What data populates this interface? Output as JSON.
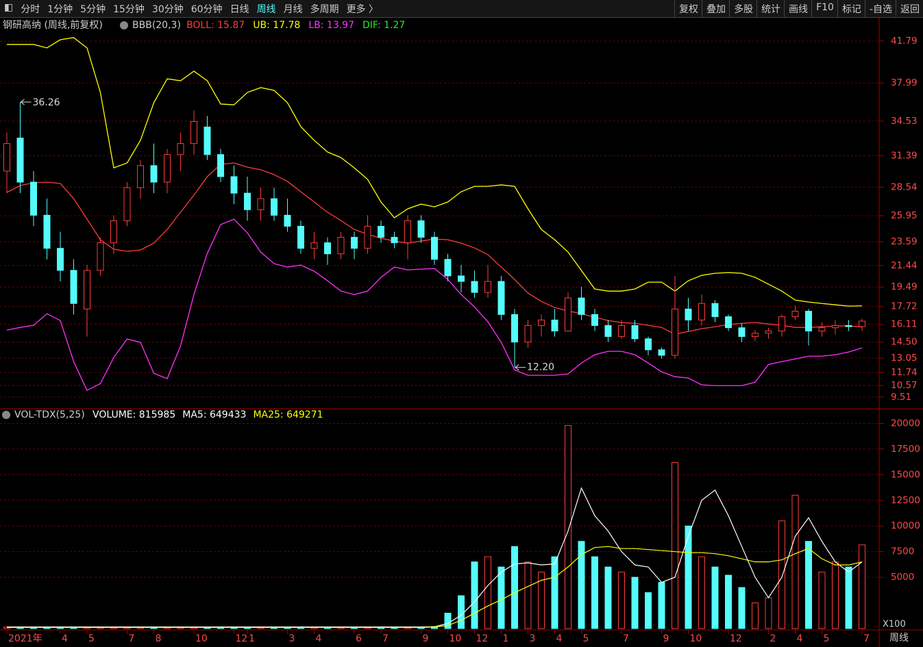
{
  "toolbar": {
    "left": [
      "分时",
      "1分钟",
      "5分钟",
      "15分钟",
      "30分钟",
      "60分钟",
      "日线",
      "周线",
      "月线",
      "多周期",
      "更多 〉"
    ],
    "active": 7,
    "right": [
      "复权",
      "叠加",
      "多股",
      "统计",
      "画线",
      "F10",
      "标记",
      "-自选",
      "返回"
    ]
  },
  "footer_period": "周线",
  "chart_data": [
    {
      "type": "candlestick",
      "title": "钢研高纳 (周线,前复权)",
      "indicator": "BBB(20,3)",
      "extra_legend": {
        "text": "DIF: 1.27",
        "color": "#22ee22"
      },
      "up_color": "#ff3c3c",
      "down_color": "#54fcfc",
      "grid": true,
      "categories": [
        "2021年",
        null,
        null,
        null,
        "4",
        null,
        "5",
        null,
        null,
        "7",
        null,
        "8",
        null,
        null,
        "10",
        null,
        null,
        "12",
        "1",
        null,
        null,
        "3",
        null,
        "4",
        null,
        null,
        "6",
        null,
        "7",
        null,
        null,
        "9",
        null,
        "10",
        null,
        "12",
        null,
        "1",
        null,
        "3",
        null,
        "4",
        null,
        "5",
        null,
        null,
        "7",
        null,
        null,
        "9",
        null,
        "10",
        null,
        null,
        "12",
        null,
        null,
        "2",
        null,
        "4",
        null,
        "5",
        null,
        null,
        "7"
      ],
      "ohlc": [
        [
          30,
          33.5,
          28,
          32.5
        ],
        [
          33,
          36.26,
          28,
          29
        ],
        [
          29,
          30,
          25,
          26
        ],
        [
          26,
          27.5,
          22,
          23
        ],
        [
          23,
          24.5,
          20,
          21
        ],
        [
          21,
          22,
          17,
          18
        ],
        [
          17.5,
          21.5,
          15,
          21
        ],
        [
          21,
          24,
          20.5,
          23.5
        ],
        [
          23.5,
          26,
          22.5,
          25.5
        ],
        [
          25.5,
          29,
          25,
          28.5
        ],
        [
          28.5,
          31,
          27.5,
          30.5
        ],
        [
          30.5,
          32.5,
          28,
          29
        ],
        [
          29,
          32,
          28,
          31.5
        ],
        [
          31.5,
          33.5,
          30,
          32.5
        ],
        [
          32.5,
          35.5,
          31.5,
          34.5
        ],
        [
          34,
          35,
          31,
          31.5
        ],
        [
          31.5,
          32,
          29,
          29.5
        ],
        [
          29.5,
          30.5,
          27,
          28
        ],
        [
          28,
          29.5,
          25.5,
          26.5
        ],
        [
          26.5,
          28.5,
          25.5,
          27.5
        ],
        [
          27.5,
          28.5,
          25.5,
          26
        ],
        [
          26,
          27.5,
          24.5,
          25
        ],
        [
          25,
          25.5,
          22.5,
          23
        ],
        [
          23,
          24.5,
          22,
          23.5
        ],
        [
          23.5,
          24,
          21.5,
          22.5
        ],
        [
          22.5,
          24.5,
          22,
          24
        ],
        [
          24,
          24.5,
          22,
          23
        ],
        [
          23,
          26,
          22.5,
          25
        ],
        [
          25,
          25.5,
          23.5,
          24
        ],
        [
          24,
          24.5,
          23,
          23.5
        ],
        [
          23.5,
          26,
          22,
          25.5
        ],
        [
          25.5,
          26,
          23.5,
          24
        ],
        [
          24,
          24.5,
          21.5,
          22
        ],
        [
          22,
          22.5,
          20,
          20.5
        ],
        [
          20.5,
          21.5,
          19,
          20
        ],
        [
          20,
          21,
          18.5,
          19
        ],
        [
          19,
          21.5,
          18.5,
          20
        ],
        [
          20,
          20.5,
          16.5,
          17
        ],
        [
          17,
          17.5,
          12.2,
          14.5
        ],
        [
          14.5,
          16.5,
          14,
          16
        ],
        [
          16,
          17,
          15,
          16.5
        ],
        [
          16.5,
          17.5,
          15,
          15.5
        ],
        [
          15.5,
          19,
          15.5,
          18.5
        ],
        [
          18.5,
          19.5,
          16.5,
          17
        ],
        [
          17,
          17.5,
          15.5,
          16
        ],
        [
          16,
          16.5,
          14.5,
          15
        ],
        [
          15,
          16.5,
          14.8,
          16
        ],
        [
          16,
          16.5,
          14.5,
          14.8
        ],
        [
          14.8,
          15,
          13.3,
          13.8
        ],
        [
          13.8,
          14,
          13,
          13.3
        ],
        [
          13.3,
          20.5,
          13,
          17.5
        ],
        [
          17.5,
          18.5,
          15.5,
          16.5
        ],
        [
          16.5,
          18.8,
          16,
          18
        ],
        [
          18,
          18.3,
          16.3,
          16.8
        ],
        [
          16.8,
          17,
          15.5,
          15.8
        ],
        [
          15.8,
          16.2,
          14.5,
          15
        ],
        [
          15,
          15.6,
          14.6,
          15.3
        ],
        [
          15.3,
          15.8,
          14.8,
          15.5
        ],
        [
          15.5,
          17,
          15,
          16.8
        ],
        [
          16.8,
          17.8,
          16.5,
          17.3
        ],
        [
          17.3,
          17.5,
          14.2,
          15.5
        ],
        [
          15.5,
          16.3,
          15,
          15.8
        ],
        [
          15.8,
          16.5,
          15.2,
          16
        ],
        [
          16,
          16.5,
          15.5,
          15.9
        ],
        [
          15.9,
          16.6,
          15.5,
          16.4
        ]
      ],
      "series": [
        {
          "name": "BOLL: 15.87",
          "color": "#ff3c3c",
          "values": [
            28.07,
            28.69,
            28.94,
            29.0,
            28.88,
            27.51,
            25.65,
            23.78,
            22.91,
            22.73,
            22.85,
            23.47,
            24.71,
            26.27,
            27.82,
            29.5,
            30.61,
            30.74,
            30.36,
            30.12,
            29.68,
            29.06,
            28.13,
            27.2,
            26.27,
            25.52,
            24.71,
            24.28,
            23.91,
            23.66,
            23.47,
            23.66,
            23.84,
            23.78,
            23.47,
            23.04,
            22.42,
            21.3,
            20.18,
            18.94,
            18.19,
            17.63,
            17.32,
            17.07,
            16.76,
            16.45,
            16.27,
            16.2,
            16.02,
            15.83,
            15.21,
            15.46,
            15.71,
            15.89,
            16.08,
            16.2,
            16.27,
            16.14,
            16.02,
            15.83,
            15.83,
            15.89,
            15.96,
            15.96,
            15.87
          ]
        },
        {
          "name": "UB: 17.78",
          "color": "#ffff00",
          "values": [
            41.48,
            41.48,
            41.48,
            41.17,
            41.91,
            42.1,
            41.17,
            37.13,
            30.3,
            30.74,
            32.79,
            36.2,
            38.37,
            38.19,
            39.06,
            38.19,
            36.08,
            36.01,
            37.13,
            37.57,
            37.32,
            36.2,
            34.03,
            32.79,
            31.73,
            31.23,
            30.3,
            29.25,
            27.2,
            25.77,
            26.58,
            27.01,
            26.76,
            27.2,
            28.13,
            28.62,
            28.62,
            28.75,
            28.62,
            26.58,
            24.71,
            23.78,
            22.66,
            20.99,
            19.31,
            19.12,
            19.12,
            19.31,
            19.93,
            19.93,
            19.12,
            20.06,
            20.55,
            20.74,
            20.8,
            20.74,
            20.37,
            19.75,
            19.12,
            18.31,
            18.13,
            18.0,
            17.88,
            17.76,
            17.78
          ]
        },
        {
          "name": "LB: 13.97",
          "color": "#ff33ff",
          "values": [
            15.58,
            15.83,
            16.02,
            17.07,
            16.45,
            12.73,
            10.12,
            10.74,
            13.1,
            14.78,
            14.47,
            11.67,
            11.18,
            14.16,
            18.81,
            22.54,
            25.15,
            25.64,
            24.4,
            22.66,
            21.61,
            21.3,
            21.48,
            20.92,
            20.06,
            19.12,
            18.81,
            19.12,
            20.37,
            21.3,
            21.05,
            21.11,
            21.17,
            20.18,
            18.81,
            17.69,
            16.33,
            14.47,
            11.98,
            11.49,
            11.49,
            11.49,
            11.61,
            12.6,
            13.35,
            13.66,
            13.66,
            13.35,
            12.6,
            11.8,
            11.36,
            11.24,
            10.62,
            10.55,
            10.55,
            10.55,
            10.86,
            12.47,
            12.73,
            12.97,
            13.22,
            13.22,
            13.35,
            13.6,
            13.97
          ]
        }
      ],
      "annotations": [
        36.26,
        {
          "value": 12.2,
          "label": "12.20"
        }
      ],
      "ylim": [
        8.89,
        43.65
      ],
      "yticks": [
        41.79,
        37.99,
        34.53,
        31.39,
        28.54,
        25.95,
        23.59,
        21.44,
        19.49,
        17.72,
        16.11,
        {
          "value": 14.5,
          "label": "14.50"
        },
        13.05,
        11.74,
        10.57,
        9.51
      ]
    },
    {
      "type": "bar",
      "title": "VOL-TDX(5,25)",
      "unit": "X100",
      "grid": true,
      "series": [
        {
          "name": "VOLUME: 815985",
          "color": "#ffffff",
          "values": [
            150,
            150,
            150,
            150,
            150,
            150,
            150,
            150,
            150,
            150,
            150,
            150,
            150,
            150,
            150,
            150,
            150,
            150,
            150,
            150,
            150,
            150,
            150,
            150,
            150,
            150,
            150,
            150,
            150,
            150,
            150,
            150,
            200,
            1500,
            3200,
            6500,
            7000,
            6000,
            8000,
            6500,
            5500,
            7000,
            19800,
            8500,
            7000,
            6000,
            5500,
            5000,
            3500,
            4500,
            16200,
            10000,
            7000,
            6000,
            5200,
            4000,
            2500,
            3000,
            10500,
            13000,
            8500,
            5500,
            6500,
            6000,
            8159.85
          ]
        },
        {
          "name": "MA5: 649433",
          "color": "#ffffff",
          "values": [
            150,
            150,
            150,
            150,
            150,
            150,
            150,
            150,
            150,
            150,
            150,
            150,
            150,
            150,
            150,
            150,
            150,
            150,
            150,
            150,
            150,
            150,
            150,
            150,
            150,
            150,
            150,
            150,
            150,
            150,
            150,
            150,
            170,
            500,
            1300,
            2600,
            4200,
            5500,
            6300,
            6400,
            6200,
            6300,
            9500,
            13700,
            11000,
            9500,
            7500,
            6200,
            6000,
            4500,
            5000,
            9000,
            12500,
            13500,
            11000,
            8000,
            5000,
            3000,
            5000,
            9000,
            10800,
            8500,
            6500,
            5500,
            6494.33
          ]
        },
        {
          "name": "MA25: 649271",
          "color": "#ffff00",
          "values": [
            100,
            100,
            100,
            100,
            100,
            100,
            100,
            100,
            100,
            100,
            100,
            100,
            100,
            100,
            100,
            100,
            100,
            100,
            100,
            100,
            100,
            100,
            100,
            100,
            100,
            100,
            100,
            100,
            100,
            100,
            100,
            100,
            150,
            300,
            800,
            1500,
            2200,
            2800,
            3500,
            4100,
            4700,
            5000,
            6000,
            7200,
            7900,
            8000,
            7800,
            7800,
            7700,
            7600,
            7500,
            7400,
            7400,
            7300,
            7100,
            6800,
            6500,
            6500,
            6700,
            7300,
            7800,
            6800,
            6200,
            6200,
            6492.71
          ]
        }
      ],
      "ylim": [
        0,
        20900
      ],
      "yticks": [
        5000,
        7500,
        10000,
        12500,
        15000,
        17500,
        20000
      ]
    }
  ]
}
